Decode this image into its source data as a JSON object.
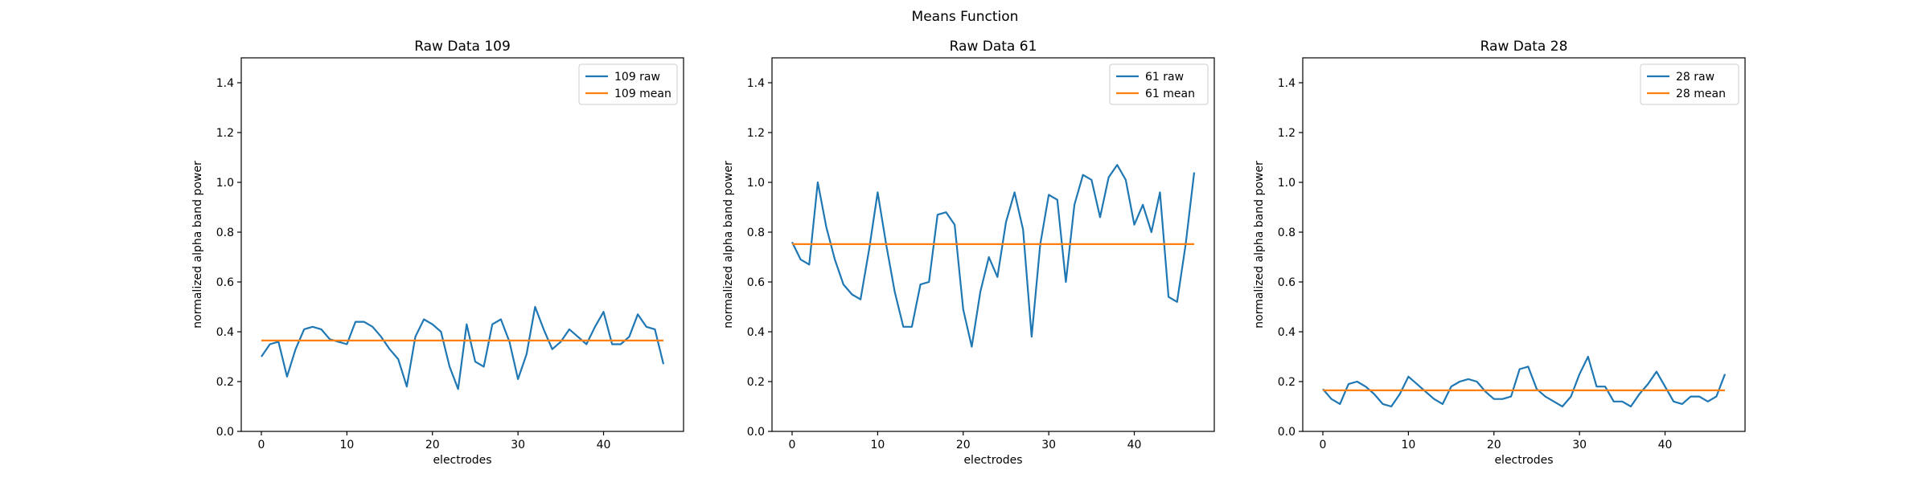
{
  "figure": {
    "suptitle": "Means Function"
  },
  "chart_data": [
    {
      "type": "line",
      "title": "Raw Data 109",
      "xlabel": "electrodes",
      "ylabel": "normalized alpha band power",
      "xlim": [
        -2.35,
        49.35
      ],
      "ylim": [
        0,
        1.5
      ],
      "xticks": [
        0,
        10,
        20,
        30,
        40
      ],
      "yticks": [
        0.0,
        0.2,
        0.4,
        0.6,
        0.8,
        1.0,
        1.2,
        1.4
      ],
      "legend_position": "upper right",
      "grid": false,
      "x": [
        0,
        1,
        2,
        3,
        4,
        5,
        6,
        7,
        8,
        9,
        10,
        11,
        12,
        13,
        14,
        15,
        16,
        17,
        18,
        19,
        20,
        21,
        22,
        23,
        24,
        25,
        26,
        27,
        28,
        29,
        30,
        31,
        32,
        33,
        34,
        35,
        36,
        37,
        38,
        39,
        40,
        41,
        42,
        43,
        44,
        45,
        46,
        47
      ],
      "series": [
        {
          "name": "109 raw",
          "color": "#1f77b4",
          "values": [
            0.3,
            0.35,
            0.36,
            0.22,
            0.33,
            0.41,
            0.42,
            0.41,
            0.37,
            0.36,
            0.35,
            0.44,
            0.44,
            0.42,
            0.38,
            0.33,
            0.29,
            0.18,
            0.38,
            0.45,
            0.43,
            0.4,
            0.26,
            0.17,
            0.43,
            0.28,
            0.26,
            0.43,
            0.45,
            0.36,
            0.21,
            0.31,
            0.5,
            0.41,
            0.33,
            0.36,
            0.41,
            0.38,
            0.35,
            0.42,
            0.48,
            0.35,
            0.35,
            0.38,
            0.47,
            0.42,
            0.41,
            0.27
          ]
        },
        {
          "name": "109 mean",
          "color": "#ff7f0e",
          "values": [
            0.365,
            0.365,
            0.365,
            0.365,
            0.365,
            0.365,
            0.365,
            0.365,
            0.365,
            0.365,
            0.365,
            0.365,
            0.365,
            0.365,
            0.365,
            0.365,
            0.365,
            0.365,
            0.365,
            0.365,
            0.365,
            0.365,
            0.365,
            0.365,
            0.365,
            0.365,
            0.365,
            0.365,
            0.365,
            0.365,
            0.365,
            0.365,
            0.365,
            0.365,
            0.365,
            0.365,
            0.365,
            0.365,
            0.365,
            0.365,
            0.365,
            0.365,
            0.365,
            0.365,
            0.365,
            0.365,
            0.365,
            0.365
          ]
        }
      ]
    },
    {
      "type": "line",
      "title": "Raw Data 61",
      "xlabel": "electrodes",
      "ylabel": "normalized alpha band power",
      "xlim": [
        -2.35,
        49.35
      ],
      "ylim": [
        0,
        1.5
      ],
      "xticks": [
        0,
        10,
        20,
        30,
        40
      ],
      "yticks": [
        0.0,
        0.2,
        0.4,
        0.6,
        0.8,
        1.0,
        1.2,
        1.4
      ],
      "legend_position": "upper right",
      "grid": false,
      "x": [
        0,
        1,
        2,
        3,
        4,
        5,
        6,
        7,
        8,
        9,
        10,
        11,
        12,
        13,
        14,
        15,
        16,
        17,
        18,
        19,
        20,
        21,
        22,
        23,
        24,
        25,
        26,
        27,
        28,
        29,
        30,
        31,
        32,
        33,
        34,
        35,
        36,
        37,
        38,
        39,
        40,
        41,
        42,
        43,
        44,
        45,
        46,
        47
      ],
      "series": [
        {
          "name": "61 raw",
          "color": "#1f77b4",
          "values": [
            0.76,
            0.69,
            0.67,
            1.0,
            0.82,
            0.69,
            0.59,
            0.55,
            0.53,
            0.73,
            0.96,
            0.75,
            0.56,
            0.42,
            0.42,
            0.59,
            0.6,
            0.87,
            0.88,
            0.83,
            0.49,
            0.34,
            0.56,
            0.7,
            0.62,
            0.84,
            0.96,
            0.81,
            0.38,
            0.75,
            0.95,
            0.93,
            0.6,
            0.91,
            1.03,
            1.01,
            0.86,
            1.02,
            1.07,
            1.01,
            0.83,
            0.91,
            0.8,
            0.96,
            0.54,
            0.52,
            0.75,
            1.04
          ]
        },
        {
          "name": "61 mean",
          "color": "#ff7f0e",
          "values": [
            0.752,
            0.752,
            0.752,
            0.752,
            0.752,
            0.752,
            0.752,
            0.752,
            0.752,
            0.752,
            0.752,
            0.752,
            0.752,
            0.752,
            0.752,
            0.752,
            0.752,
            0.752,
            0.752,
            0.752,
            0.752,
            0.752,
            0.752,
            0.752,
            0.752,
            0.752,
            0.752,
            0.752,
            0.752,
            0.752,
            0.752,
            0.752,
            0.752,
            0.752,
            0.752,
            0.752,
            0.752,
            0.752,
            0.752,
            0.752,
            0.752,
            0.752,
            0.752,
            0.752,
            0.752,
            0.752,
            0.752,
            0.752
          ]
        }
      ]
    },
    {
      "type": "line",
      "title": "Raw Data 28",
      "xlabel": "electrodes",
      "ylabel": "normalized alpha band power",
      "xlim": [
        -2.35,
        49.35
      ],
      "ylim": [
        0,
        1.5
      ],
      "xticks": [
        0,
        10,
        20,
        30,
        40
      ],
      "yticks": [
        0.0,
        0.2,
        0.4,
        0.6,
        0.8,
        1.0,
        1.2,
        1.4
      ],
      "legend_position": "upper right",
      "grid": false,
      "x": [
        0,
        1,
        2,
        3,
        4,
        5,
        6,
        7,
        8,
        9,
        10,
        11,
        12,
        13,
        14,
        15,
        16,
        17,
        18,
        19,
        20,
        21,
        22,
        23,
        24,
        25,
        26,
        27,
        28,
        29,
        30,
        31,
        32,
        33,
        34,
        35,
        36,
        37,
        38,
        39,
        40,
        41,
        42,
        43,
        44,
        45,
        46,
        47
      ],
      "series": [
        {
          "name": "28 raw",
          "color": "#1f77b4",
          "values": [
            0.17,
            0.13,
            0.11,
            0.19,
            0.2,
            0.18,
            0.15,
            0.11,
            0.1,
            0.15,
            0.22,
            0.19,
            0.16,
            0.13,
            0.11,
            0.18,
            0.2,
            0.21,
            0.2,
            0.16,
            0.13,
            0.13,
            0.14,
            0.25,
            0.26,
            0.17,
            0.14,
            0.12,
            0.1,
            0.14,
            0.23,
            0.3,
            0.18,
            0.18,
            0.12,
            0.12,
            0.1,
            0.15,
            0.19,
            0.24,
            0.18,
            0.12,
            0.11,
            0.14,
            0.14,
            0.12,
            0.14,
            0.23
          ]
        },
        {
          "name": "28 mean",
          "color": "#ff7f0e",
          "values": [
            0.165,
            0.165,
            0.165,
            0.165,
            0.165,
            0.165,
            0.165,
            0.165,
            0.165,
            0.165,
            0.165,
            0.165,
            0.165,
            0.165,
            0.165,
            0.165,
            0.165,
            0.165,
            0.165,
            0.165,
            0.165,
            0.165,
            0.165,
            0.165,
            0.165,
            0.165,
            0.165,
            0.165,
            0.165,
            0.165,
            0.165,
            0.165,
            0.165,
            0.165,
            0.165,
            0.165,
            0.165,
            0.165,
            0.165,
            0.165,
            0.165,
            0.165,
            0.165,
            0.165,
            0.165,
            0.165,
            0.165,
            0.165
          ]
        }
      ]
    }
  ]
}
